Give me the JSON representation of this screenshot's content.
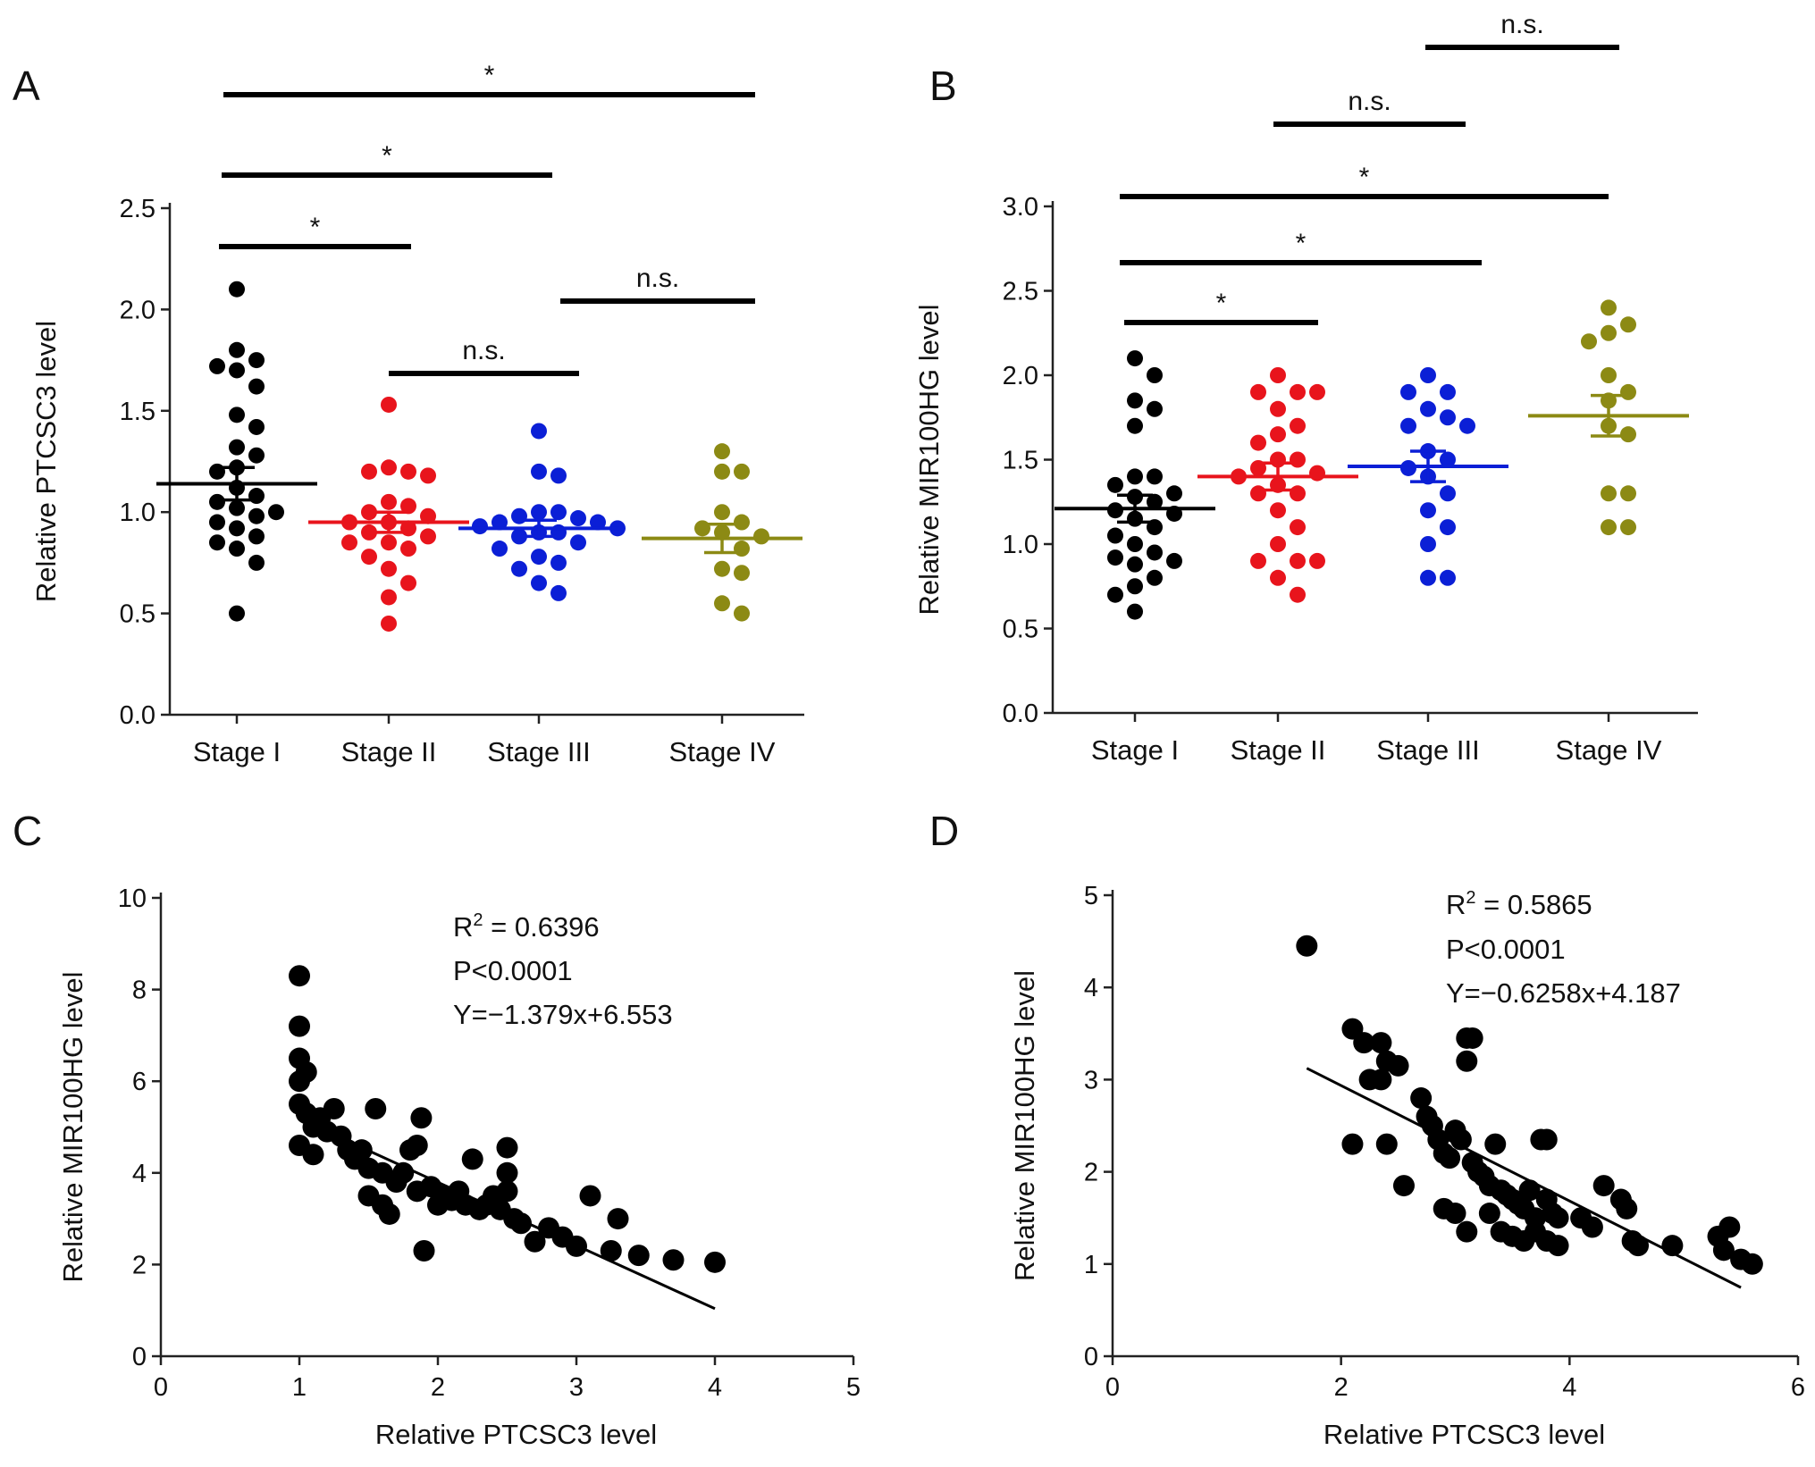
{
  "chart_data": [
    {
      "panel": "A",
      "type": "scatter",
      "subtype": "dot-plot-mean-sem",
      "ylabel": "Relative PTCSC3 level",
      "xlabel": "",
      "ylim": [
        0,
        2.5
      ],
      "yticks": [
        "0.0",
        "0.5",
        "1.0",
        "1.5",
        "2.0",
        "2.5"
      ],
      "categories": [
        "Stage I",
        "Stage II",
        "Stage III",
        "Stage IV"
      ],
      "series": [
        {
          "name": "Stage I",
          "color": "#000000",
          "mean": 1.14,
          "sem": 0.08,
          "values": [
            2.1,
            1.8,
            1.75,
            1.72,
            1.7,
            1.62,
            1.48,
            1.42,
            1.32,
            1.28,
            1.22,
            1.2,
            1.12,
            1.08,
            1.05,
            1.02,
            1.0,
            0.98,
            0.95,
            0.92,
            0.88,
            0.85,
            0.82,
            0.75,
            0.5
          ]
        },
        {
          "name": "Stage II",
          "color": "#e8141c",
          "mean": 0.95,
          "sem": 0.05,
          "values": [
            1.53,
            1.22,
            1.2,
            1.2,
            1.18,
            1.05,
            1.03,
            1.0,
            0.98,
            0.95,
            0.95,
            0.92,
            0.9,
            0.88,
            0.85,
            0.85,
            0.82,
            0.78,
            0.72,
            0.65,
            0.58,
            0.45
          ]
        },
        {
          "name": "Stage III",
          "color": "#0b1fd6",
          "mean": 0.92,
          "sem": 0.04,
          "values": [
            1.4,
            1.2,
            1.18,
            1.0,
            1.0,
            0.98,
            0.97,
            0.95,
            0.95,
            0.93,
            0.92,
            0.9,
            0.9,
            0.88,
            0.85,
            0.82,
            0.78,
            0.75,
            0.72,
            0.65,
            0.6
          ]
        },
        {
          "name": "Stage IV",
          "color": "#8c8a14",
          "mean": 0.87,
          "sem": 0.07,
          "values": [
            1.3,
            1.2,
            1.2,
            1.0,
            0.95,
            0.92,
            0.9,
            0.88,
            0.82,
            0.72,
            0.7,
            0.55,
            0.5
          ]
        }
      ],
      "comparisons": [
        {
          "from": "Stage I",
          "to": "Stage II",
          "label": "*"
        },
        {
          "from": "Stage II",
          "to": "Stage III",
          "label": "n.s."
        },
        {
          "from": "Stage I",
          "to": "Stage III",
          "label": "*"
        },
        {
          "from": "Stage III",
          "to": "Stage IV",
          "label": "n.s."
        },
        {
          "from": "Stage I",
          "to": "Stage IV",
          "label": "*"
        }
      ]
    },
    {
      "panel": "B",
      "type": "scatter",
      "subtype": "dot-plot-mean-sem",
      "ylabel": "Relative MIR100HG level",
      "xlabel": "",
      "ylim": [
        0,
        3.0
      ],
      "yticks": [
        "0.0",
        "0.5",
        "1.0",
        "1.5",
        "2.0",
        "2.5",
        "3.0"
      ],
      "categories": [
        "Stage I",
        "Stage II",
        "Stage III",
        "Stage IV"
      ],
      "series": [
        {
          "name": "Stage I",
          "color": "#000000",
          "mean": 1.21,
          "sem": 0.08,
          "values": [
            2.1,
            2.0,
            1.85,
            1.8,
            1.7,
            1.4,
            1.4,
            1.35,
            1.3,
            1.28,
            1.25,
            1.2,
            1.18,
            1.15,
            1.1,
            1.05,
            1.0,
            0.95,
            0.92,
            0.9,
            0.88,
            0.8,
            0.75,
            0.7,
            0.6
          ]
        },
        {
          "name": "Stage II",
          "color": "#e8141c",
          "mean": 1.4,
          "sem": 0.08,
          "values": [
            2.0,
            1.9,
            1.9,
            1.9,
            1.8,
            1.7,
            1.65,
            1.6,
            1.5,
            1.5,
            1.45,
            1.42,
            1.4,
            1.35,
            1.3,
            1.3,
            1.2,
            1.1,
            1.0,
            0.9,
            0.9,
            0.9,
            0.8,
            0.7
          ]
        },
        {
          "name": "Stage III",
          "color": "#0b1fd6",
          "mean": 1.46,
          "sem": 0.09,
          "values": [
            2.0,
            1.9,
            1.9,
            1.8,
            1.75,
            1.7,
            1.7,
            1.55,
            1.5,
            1.45,
            1.4,
            1.3,
            1.2,
            1.1,
            1.0,
            0.8,
            0.8
          ]
        },
        {
          "name": "Stage IV",
          "color": "#8c8a14",
          "mean": 1.76,
          "sem": 0.12,
          "values": [
            2.4,
            2.3,
            2.25,
            2.2,
            2.0,
            1.9,
            1.85,
            1.7,
            1.65,
            1.3,
            1.3,
            1.1,
            1.1
          ]
        }
      ],
      "comparisons": [
        {
          "from": "Stage I",
          "to": "Stage II",
          "label": "*"
        },
        {
          "from": "Stage I",
          "to": "Stage III",
          "label": "*"
        },
        {
          "from": "Stage I",
          "to": "Stage IV",
          "label": "*"
        },
        {
          "from": "Stage II",
          "to": "Stage III",
          "label": "n.s."
        },
        {
          "from": "Stage III",
          "to": "Stage IV",
          "label": "n.s."
        }
      ]
    },
    {
      "panel": "C",
      "type": "scatter",
      "xlabel": "Relative PTCSC3 level",
      "ylabel": "Relative MIR100HG level",
      "xlim": [
        0,
        5
      ],
      "ylim": [
        0,
        10
      ],
      "xticks": [
        "0",
        "1",
        "2",
        "3",
        "4",
        "5"
      ],
      "yticks": [
        "0",
        "2",
        "4",
        "6",
        "8",
        "10"
      ],
      "annotations": {
        "r2_prefix": "R",
        "r2_sup": "2",
        "r2_value": " = 0.6396",
        "p": "P<0.0001",
        "eq": "Y=−1.379x+6.553"
      },
      "fit": {
        "slope": -1.379,
        "intercept": 6.553,
        "x_range": [
          1.0,
          4.0
        ]
      },
      "points": [
        [
          1.0,
          8.3
        ],
        [
          1.0,
          7.2
        ],
        [
          1.0,
          6.5
        ],
        [
          1.0,
          6.0
        ],
        [
          1.05,
          6.2
        ],
        [
          1.0,
          5.5
        ],
        [
          1.05,
          5.3
        ],
        [
          1.0,
          4.6
        ],
        [
          1.1,
          4.4
        ],
        [
          1.1,
          5.0
        ],
        [
          1.15,
          5.2
        ],
        [
          1.2,
          4.9
        ],
        [
          1.25,
          5.4
        ],
        [
          1.3,
          4.8
        ],
        [
          1.35,
          4.5
        ],
        [
          1.4,
          4.3
        ],
        [
          1.45,
          4.5
        ],
        [
          1.5,
          4.1
        ],
        [
          1.5,
          3.5
        ],
        [
          1.55,
          5.4
        ],
        [
          1.6,
          4.0
        ],
        [
          1.6,
          3.3
        ],
        [
          1.65,
          3.1
        ],
        [
          1.7,
          3.8
        ],
        [
          1.75,
          4.0
        ],
        [
          1.8,
          4.5
        ],
        [
          1.85,
          3.6
        ],
        [
          1.85,
          4.6
        ],
        [
          1.88,
          5.2
        ],
        [
          1.9,
          2.3
        ],
        [
          1.95,
          3.7
        ],
        [
          2.0,
          3.3
        ],
        [
          2.05,
          3.5
        ],
        [
          2.1,
          3.4
        ],
        [
          2.15,
          3.6
        ],
        [
          2.2,
          3.3
        ],
        [
          2.25,
          4.3
        ],
        [
          2.3,
          3.2
        ],
        [
          2.35,
          3.3
        ],
        [
          2.4,
          3.5
        ],
        [
          2.45,
          3.2
        ],
        [
          2.5,
          4.0
        ],
        [
          2.5,
          3.6
        ],
        [
          2.5,
          4.55
        ],
        [
          2.55,
          3.0
        ],
        [
          2.6,
          2.9
        ],
        [
          2.7,
          2.5
        ],
        [
          2.8,
          2.8
        ],
        [
          2.9,
          2.6
        ],
        [
          3.0,
          2.4
        ],
        [
          3.1,
          3.5
        ],
        [
          3.25,
          2.3
        ],
        [
          3.3,
          3.0
        ],
        [
          3.45,
          2.2
        ],
        [
          3.7,
          2.1
        ],
        [
          4.0,
          2.05
        ]
      ]
    },
    {
      "panel": "D",
      "type": "scatter",
      "xlabel": "Relative PTCSC3 level",
      "ylabel": "Relative MIR100HG level",
      "xlim": [
        0,
        6
      ],
      "ylim": [
        0,
        5
      ],
      "xticks": [
        "0",
        "2",
        "4",
        "6"
      ],
      "yticks": [
        "0",
        "1",
        "2",
        "3",
        "4",
        "5"
      ],
      "annotations": {
        "r2_prefix": "R",
        "r2_sup": "2",
        "r2_value": " = 0.5865",
        "p": "P<0.0001",
        "eq": "Y=−0.6258x+4.187"
      },
      "fit": {
        "slope": -0.6258,
        "intercept": 4.187,
        "x_range": [
          1.7,
          5.5
        ]
      },
      "points": [
        [
          1.7,
          4.45
        ],
        [
          2.1,
          3.55
        ],
        [
          2.2,
          3.4
        ],
        [
          2.35,
          3.4
        ],
        [
          2.4,
          3.2
        ],
        [
          2.5,
          3.15
        ],
        [
          2.25,
          3.0
        ],
        [
          2.35,
          3.0
        ],
        [
          2.1,
          2.3
        ],
        [
          2.4,
          2.3
        ],
        [
          2.55,
          1.85
        ],
        [
          2.7,
          2.8
        ],
        [
          2.75,
          2.6
        ],
        [
          2.8,
          2.5
        ],
        [
          2.85,
          2.35
        ],
        [
          2.9,
          2.2
        ],
        [
          2.95,
          2.15
        ],
        [
          3.0,
          2.45
        ],
        [
          3.05,
          2.35
        ],
        [
          3.1,
          3.45
        ],
        [
          3.15,
          3.45
        ],
        [
          3.1,
          3.2
        ],
        [
          3.15,
          2.1
        ],
        [
          3.2,
          2.0
        ],
        [
          3.25,
          1.95
        ],
        [
          3.3,
          1.85
        ],
        [
          3.35,
          2.3
        ],
        [
          3.4,
          1.8
        ],
        [
          3.45,
          1.75
        ],
        [
          3.5,
          1.7
        ],
        [
          3.55,
          1.65
        ],
        [
          3.6,
          1.6
        ],
        [
          3.65,
          1.8
        ],
        [
          3.7,
          1.5
        ],
        [
          3.75,
          2.35
        ],
        [
          3.8,
          2.35
        ],
        [
          3.8,
          1.7
        ],
        [
          3.85,
          1.55
        ],
        [
          3.9,
          1.5
        ],
        [
          2.9,
          1.6
        ],
        [
          3.0,
          1.55
        ],
        [
          3.1,
          1.35
        ],
        [
          3.3,
          1.55
        ],
        [
          3.4,
          1.35
        ],
        [
          3.5,
          1.3
        ],
        [
          3.6,
          1.25
        ],
        [
          3.7,
          1.35
        ],
        [
          3.8,
          1.25
        ],
        [
          3.9,
          1.2
        ],
        [
          4.1,
          1.5
        ],
        [
          4.2,
          1.4
        ],
        [
          4.3,
          1.85
        ],
        [
          4.45,
          1.7
        ],
        [
          4.5,
          1.6
        ],
        [
          4.55,
          1.25
        ],
        [
          4.6,
          1.2
        ],
        [
          4.9,
          1.2
        ],
        [
          5.3,
          1.3
        ],
        [
          5.4,
          1.4
        ],
        [
          5.35,
          1.15
        ],
        [
          5.5,
          1.05
        ],
        [
          5.6,
          1.0
        ]
      ]
    }
  ]
}
